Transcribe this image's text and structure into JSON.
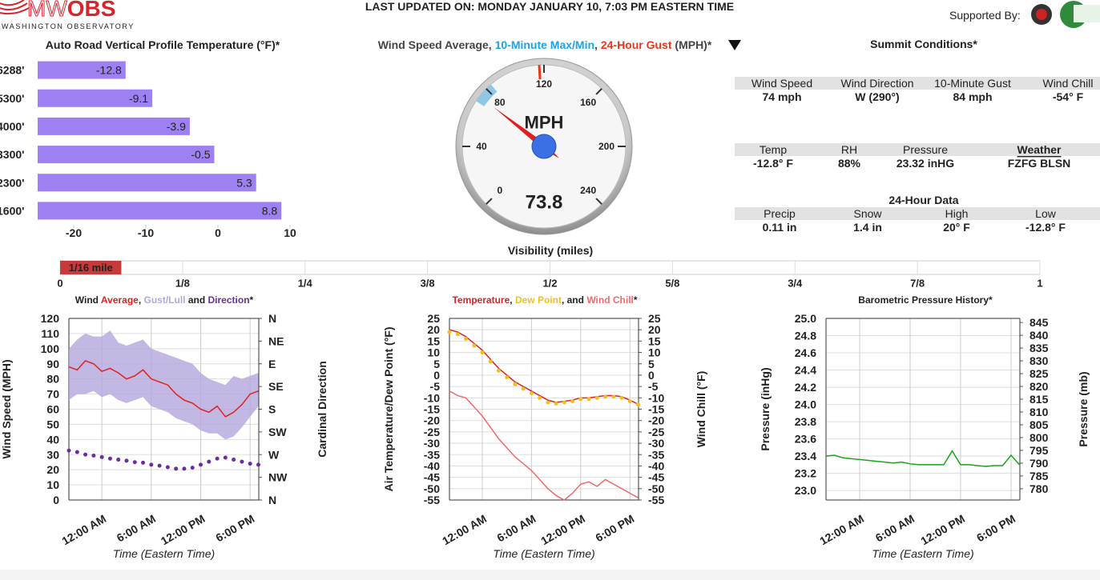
{
  "header": {
    "logo_mark": "MW",
    "logo_bold": "OBS",
    "logo_sub": "WASHINGTON OBSERVATORY",
    "updated": "LAST UPDATED ON: MONDAY JANUARY 10, 7:03 PM EASTERN TIME",
    "supported": "Supported By:"
  },
  "summit": {
    "title": "Summit Conditions*",
    "groups": [
      {
        "headers": [
          "Wind Speed",
          "Wind Direction",
          "10-Minute Gust",
          "Wind Chill"
        ],
        "values": [
          "74 mph",
          "W (290°)",
          "84 mph",
          "-54° F"
        ]
      },
      {
        "headers": [
          "Temp",
          "RH",
          "Pressure",
          {
            "text": "Weather",
            "link": true
          }
        ],
        "values": [
          "-12.8° F",
          "88%",
          "23.32 inHG",
          "FZFG BLSN"
        ]
      },
      {
        "title": "24-Hour Data",
        "headers": [
          "Precip",
          "Snow",
          "High",
          "Low"
        ],
        "values": [
          "0.11 in",
          "1.4 in",
          "20° F",
          "-12.8° F"
        ]
      }
    ]
  },
  "chart_data": [
    {
      "type": "bar",
      "orientation": "horizontal",
      "title": "Auto Road Vertical Profile Temperature (°F)*",
      "categories": [
        "6288'",
        "5300'",
        "4000'",
        "3300'",
        "2300'",
        "1600'"
      ],
      "values": [
        -12.8,
        -9.1,
        -3.9,
        -0.5,
        5.3,
        8.8
      ],
      "color": "#9d80f2",
      "xlim": [
        -25,
        10
      ],
      "xticks": [
        -20,
        -10,
        0,
        10
      ]
    },
    {
      "type": "gauge",
      "title_parts": [
        {
          "text": "Wind Speed Average, ",
          "color": "#444444"
        },
        {
          "text": "10-Minute Max/Min",
          "color": "#1ba3e8"
        },
        {
          "text": ", ",
          "color": "#444444"
        },
        {
          "text": "24-Hour Gust",
          "color": "#e8361a"
        },
        {
          "text": " (MPH)*",
          "color": "#444444"
        }
      ],
      "unit": "MPH",
      "value": 73.8,
      "lim": [
        0,
        240
      ],
      "ticks": [
        0,
        40,
        80,
        120,
        160,
        200,
        240
      ],
      "range": [
        70,
        84
      ],
      "range_color": "#8fc8e6",
      "gust": 117,
      "gust_color": "#e8361a",
      "needle_color": "#e02020"
    },
    {
      "type": "progress",
      "title": "Visibility (miles)",
      "value": 0.0625,
      "value_label": "1/16 mile",
      "color": "#c9393b",
      "xlim": [
        0,
        1
      ],
      "xticks": [
        0,
        {
          "value": 0.125,
          "label": "1/8"
        },
        {
          "value": 0.25,
          "label": "1/4"
        },
        {
          "value": 0.375,
          "label": "3/8"
        },
        {
          "value": 0.5,
          "label": "1/2"
        },
        {
          "value": 0.625,
          "label": "5/8"
        },
        {
          "value": 0.75,
          "label": "3/4"
        },
        {
          "value": 0.875,
          "label": "7/8"
        },
        1
      ]
    },
    {
      "type": "line",
      "title_lead": "Wind ",
      "title_joins": [
        ", ",
        " and "
      ],
      "title_end": "*",
      "xlabel": "Time (Eastern Time)",
      "ylabel": "Wind Speed (MPH)",
      "ylabel_color": "#e02020",
      "y2label": "Cardinal Direction",
      "y2label_color": "#6a2d9c",
      "x": [
        -4,
        -3,
        -2,
        -1,
        0,
        1,
        2,
        3,
        4,
        5,
        6,
        7,
        8,
        9,
        10,
        11,
        12,
        13,
        14,
        15,
        16,
        17,
        18,
        19
      ],
      "xlim": [
        -4,
        19.05
      ],
      "xticks": [
        {
          "value": 0,
          "label": "12:00 AM"
        },
        {
          "value": 6,
          "label": "6:00 AM"
        },
        {
          "value": 12,
          "label": "12:00 PM"
        },
        {
          "value": 18,
          "label": "6:00 PM"
        }
      ],
      "ylim": [
        0,
        120
      ],
      "yticks": [
        0,
        10,
        20,
        30,
        40,
        50,
        60,
        70,
        80,
        90,
        100,
        110,
        120
      ],
      "y2lim": [
        360,
        0
      ],
      "y2ticks": [
        {
          "value": 0,
          "label": "N"
        },
        {
          "value": 45,
          "label": "NE"
        },
        {
          "value": 90,
          "label": "E"
        },
        {
          "value": 135,
          "label": "SE"
        },
        {
          "value": 180,
          "label": "S"
        },
        {
          "value": 225,
          "label": "SW"
        },
        {
          "value": 270,
          "label": "W"
        },
        {
          "value": 315,
          "label": "NW"
        },
        {
          "value": 360,
          "label": "N"
        }
      ],
      "grid": true,
      "series": [
        {
          "name": "Average",
          "kind": "line",
          "color": "#e02020",
          "values": [
            88,
            86,
            92,
            90,
            85,
            87,
            84,
            80,
            82,
            86,
            80,
            78,
            76,
            70,
            66,
            64,
            60,
            58,
            62,
            55,
            58,
            63,
            70,
            72
          ]
        },
        {
          "name": "Gust/Lull",
          "kind": "band",
          "color": "#b3a6dc",
          "values": [
            100,
            106,
            110,
            108,
            108,
            112,
            104,
            102,
            104,
            106,
            100,
            98,
            96,
            94,
            92,
            90,
            84,
            80,
            78,
            76,
            82,
            80,
            82,
            84
          ],
          "lower": [
            66,
            70,
            70,
            72,
            68,
            70,
            66,
            64,
            66,
            68,
            62,
            60,
            58,
            54,
            52,
            50,
            46,
            44,
            44,
            40,
            42,
            48,
            55,
            62
          ]
        },
        {
          "name": "Direction",
          "kind": "points",
          "color": "#6a2d9c",
          "axis": "y2",
          "values": [
            262,
            265,
            270,
            272,
            275,
            278,
            280,
            282,
            285,
            286,
            290,
            292,
            295,
            298,
            298,
            296,
            290,
            284,
            278,
            276,
            280,
            284,
            288,
            290
          ]
        }
      ]
    },
    {
      "type": "line",
      "title_joins": [
        ", ",
        ", and "
      ],
      "title_end": "*",
      "xlabel": "Time (Eastern Time)",
      "ylabel": "Air Temperature/Dew Point (°F)",
      "ylabel_color": "#e02020",
      "y2label": "Wind Chill (°F)",
      "y2label_color": "#f06a6a",
      "x": [
        -4,
        -3,
        -2,
        -1,
        0,
        1,
        2,
        3,
        4,
        5,
        6,
        7,
        8,
        9,
        10,
        11,
        12,
        13,
        14,
        15,
        16,
        17,
        18,
        19
      ],
      "xlim": [
        -4,
        19.05
      ],
      "xticks": [
        {
          "value": 0,
          "label": "12:00 AM"
        },
        {
          "value": 6,
          "label": "6:00 AM"
        },
        {
          "value": 12,
          "label": "12:00 PM"
        },
        {
          "value": 18,
          "label": "6:00 PM"
        }
      ],
      "ylim": [
        -55,
        25
      ],
      "yticks": [
        -55,
        -50,
        -45,
        -40,
        -35,
        -30,
        -25,
        -20,
        -15,
        -10,
        -5,
        0,
        5,
        10,
        15,
        20,
        25
      ],
      "y2lim": [
        -55,
        25
      ],
      "y2ticks": [
        -55,
        -50,
        -45,
        -40,
        -35,
        -30,
        -25,
        -20,
        -15,
        -10,
        -5,
        0,
        5,
        10,
        15,
        20,
        25
      ],
      "grid": true,
      "series": [
        {
          "name": "Temperature",
          "kind": "line",
          "color": "#e02020",
          "values": [
            20,
            19,
            17,
            14,
            11,
            7,
            3,
            0,
            -3,
            -5,
            -7,
            -9,
            -11,
            -12,
            -11.5,
            -11,
            -10,
            -10,
            -9.5,
            -9,
            -9,
            -9.5,
            -11,
            -12.8
          ]
        },
        {
          "name": "Dew Point",
          "kind": "points",
          "color": "#f0c020",
          "values": [
            19,
            18,
            16,
            13,
            10,
            6,
            2,
            -1,
            -4,
            -6,
            -8,
            -10,
            -12,
            -12.5,
            -12,
            -11.5,
            -10.5,
            -10.5,
            -10,
            -9.5,
            -9.5,
            -10,
            -11.5,
            -13
          ]
        },
        {
          "name": "Wind Chill",
          "kind": "line",
          "color": "#f06a6a",
          "axis": "y2",
          "values": [
            -7,
            -9,
            -10,
            -14,
            -18,
            -23,
            -28,
            -32,
            -36,
            -39,
            -42,
            -46,
            -50,
            -53,
            -55,
            -52,
            -48,
            -47,
            -49,
            -46,
            -48,
            -50,
            -52,
            -54
          ]
        }
      ]
    },
    {
      "type": "line",
      "title": "Barometric Pressure History*",
      "xlabel": "Time (Eastern Time)",
      "ylabel": "Pressure (inHg)",
      "ylabel_color": "#1aa31a",
      "y2label": "Pressure (mb)",
      "y2label_color": "#1aa31a",
      "x": [
        -4,
        -3,
        -2,
        -1,
        0,
        1,
        2,
        3,
        4,
        5,
        6,
        7,
        8,
        9,
        10,
        11,
        12,
        13,
        14,
        15,
        16,
        17,
        18,
        19
      ],
      "xlim": [
        -4,
        19.05
      ],
      "xticks": [
        {
          "value": 0,
          "label": "12:00 AM"
        },
        {
          "value": 6,
          "label": "6:00 AM"
        },
        {
          "value": 12,
          "label": "12:00 PM"
        },
        {
          "value": 18,
          "label": "6:00 PM"
        }
      ],
      "ylim": [
        22.89,
        25
      ],
      "yticks": [
        {
          "value": 23,
          "label": "23.0"
        },
        23.2,
        23.4,
        23.6,
        23.8,
        {
          "value": 24,
          "label": "24.0"
        },
        24.2,
        24.4,
        24.6,
        24.8,
        {
          "value": 25,
          "label": "25.0"
        }
      ],
      "y2lim": [
        775.6,
        846.6
      ],
      "y2ticks": [
        780,
        785,
        790,
        795,
        800,
        805,
        810,
        815,
        820,
        825,
        830,
        835,
        840,
        845
      ],
      "grid": true,
      "series": [
        {
          "kind": "line",
          "color": "#1aa31a",
          "values": [
            23.4,
            23.41,
            23.38,
            23.37,
            23.36,
            23.35,
            23.34,
            23.33,
            23.32,
            23.33,
            23.31,
            23.3,
            23.3,
            23.3,
            23.3,
            23.46,
            23.3,
            23.3,
            23.29,
            23.28,
            23.29,
            23.29,
            23.41,
            23.3
          ]
        }
      ]
    }
  ]
}
